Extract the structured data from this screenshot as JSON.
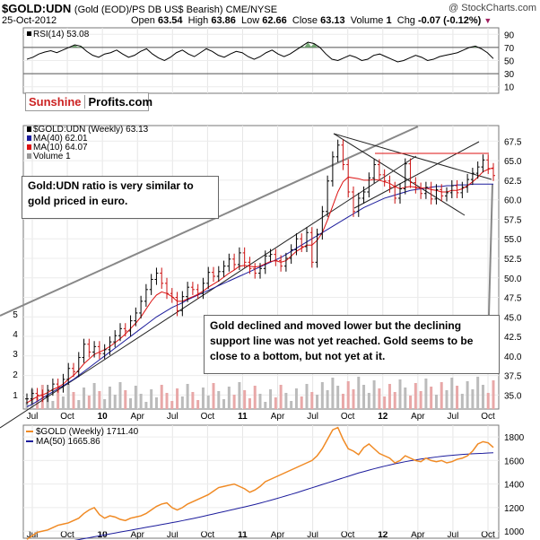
{
  "header": {
    "symbol": "$GOLD:UDN",
    "description": "(Gold (EOD)/PS DB US$ Bearish) CME/NYSE",
    "credit": "@ StockCharts.com",
    "date": "25-Oct-2012",
    "open_label": "Open",
    "open": "63.54",
    "high_label": "High",
    "high": "63.86",
    "low_label": "Low",
    "low": "62.66",
    "close_label": "Close",
    "close": "63.13",
    "volume_label": "Volume",
    "volume": "1",
    "chg_label": "Chg",
    "chg": "-0.07 (-0.12%)"
  },
  "branding": {
    "part1": "Sunshine",
    "part2": "Profits.com"
  },
  "annotations": {
    "note1": "Gold:UDN ratio is very similar to gold priced in euro.",
    "note2": "Gold declined and moved lower but the declining support line was not yet reached. Gold seems to be close to a bottom, but not yet at it."
  },
  "colors": {
    "price": "#000000",
    "ma40": "#1c1c9c",
    "ma10": "#dd1111",
    "volume_up": "#bbbbbb",
    "volume_down": "#e8a8a8",
    "gold": "#f08a24",
    "gold_ma50": "#1c1c9c",
    "rsi_fill_over": "#5f9a5f",
    "trendline": "#888888"
  },
  "chart_data": [
    {
      "type": "line",
      "panel": "rsi",
      "legend": [
        {
          "label": "RSI(14) 53.08",
          "color": "#000000"
        }
      ],
      "yticks": [
        10,
        30,
        50,
        70,
        90
      ],
      "ylim": [
        0,
        100
      ],
      "levels": [
        30,
        70
      ],
      "series": [
        {
          "name": "RSI(14)",
          "values": [
            52,
            55,
            60,
            63,
            65,
            62,
            66,
            70,
            74,
            72,
            64,
            58,
            55,
            60,
            62,
            66,
            60,
            55,
            58,
            64,
            68,
            60,
            54,
            50,
            55,
            62,
            66,
            60,
            56,
            62,
            68,
            64,
            58,
            55,
            60,
            64,
            62,
            56,
            52,
            56,
            62,
            66,
            60,
            56,
            60,
            66,
            72,
            78,
            76,
            70,
            60,
            52,
            50,
            54,
            58,
            55,
            50,
            52,
            58,
            60,
            56,
            52,
            48,
            50,
            54,
            58,
            55,
            50,
            52,
            56,
            58,
            60,
            62,
            66,
            70,
            72,
            68,
            62,
            53
          ]
        }
      ]
    },
    {
      "type": "line",
      "panel": "main",
      "legend": [
        {
          "label": "$GOLD:UDN (Weekly) 63.13",
          "color": "#000000"
        },
        {
          "label": "MA(40) 62.01",
          "color": "#1c1c9c"
        },
        {
          "label": "MA(10) 64.07",
          "color": "#dd1111"
        },
        {
          "label": "Volume 1",
          "color": "#999999"
        }
      ],
      "x_ticks": [
        "Jul",
        "Oct",
        "10",
        "Apr",
        "Jul",
        "Oct",
        "11",
        "Apr",
        "Jul",
        "Oct",
        "12",
        "Apr",
        "Jul",
        "Oct"
      ],
      "y_ticks": [
        35.0,
        37.5,
        40.0,
        42.5,
        45.0,
        47.5,
        50.0,
        52.5,
        55.0,
        57.5,
        60.0,
        62.5,
        65.0,
        67.5
      ],
      "ylim": [
        33.2,
        69.5
      ],
      "volume_ticks": [
        1,
        2,
        3,
        4,
        5
      ],
      "series": [
        {
          "name": "$GOLD:UDN",
          "values": [
            34.5,
            35.2,
            35.0,
            34.8,
            35.6,
            36.4,
            36.0,
            37.0,
            38.4,
            38.0,
            39.8,
            41.5,
            40.5,
            41.2,
            40.3,
            40.8,
            41.8,
            42.6,
            43.5,
            43.2,
            44.5,
            45.5,
            47.0,
            48.5,
            49.8,
            50.6,
            49.3,
            48.0,
            47.5,
            45.8,
            47.6,
            48.8,
            48.5,
            48.0,
            49.3,
            50.7,
            50.2,
            50.8,
            51.5,
            52.4,
            51.7,
            53.2,
            52.0,
            51.2,
            50.6,
            51.2,
            52.8,
            53.0,
            52.2,
            51.5,
            52.5,
            53.6,
            55.0,
            54.0,
            55.8,
            52.0,
            55.6,
            58.5,
            62.4,
            65.5,
            67.0,
            64.5,
            61.0,
            58.5,
            60.2,
            61.0,
            62.8,
            64.5,
            63.2,
            62.4,
            61.6,
            60.2,
            61.4,
            64.6,
            62.2,
            61.5,
            60.8,
            61.6,
            60.1,
            61.3,
            60.5,
            60.9,
            61.8,
            60.9,
            61.6,
            62.6,
            63.4,
            64.2,
            65.1,
            64.0,
            63.1
          ]
        },
        {
          "name": "MA(40)",
          "values": [
            33.5,
            33.8,
            34.2,
            34.6,
            35.0,
            35.4,
            35.8,
            36.2,
            36.6,
            37.0,
            37.5,
            38.0,
            38.5,
            39.0,
            39.5,
            40.0,
            40.5,
            41.0,
            41.5,
            42.0,
            42.5,
            43.0,
            43.5,
            44.0,
            44.5,
            45.0,
            45.4,
            45.8,
            46.2,
            46.5,
            46.8,
            47.2,
            47.5,
            47.8,
            48.1,
            48.4,
            48.7,
            49.0,
            49.3,
            49.6,
            49.9,
            50.2,
            50.5,
            50.8,
            51.1,
            51.4,
            51.7,
            52.0,
            52.3,
            52.6,
            53.0,
            53.4,
            53.8,
            54.2,
            54.6,
            55.0,
            55.4,
            55.8,
            56.2,
            56.6,
            57.0,
            57.4,
            57.8,
            58.2,
            58.6,
            59.0,
            59.3,
            59.6,
            59.9,
            60.2,
            60.4,
            60.6,
            60.8,
            61.0,
            61.2,
            61.3,
            61.4,
            61.5,
            61.6,
            61.7,
            61.7,
            61.8,
            61.8,
            61.9,
            61.9,
            61.9,
            62.0,
            62.0,
            62.0,
            62.0,
            62.0
          ]
        },
        {
          "name": "MA(10)",
          "values": [
            34.0,
            34.4,
            34.8,
            35.0,
            35.3,
            35.7,
            36.0,
            36.4,
            37.0,
            37.5,
            38.2,
            39.0,
            39.6,
            40.2,
            40.5,
            40.8,
            41.2,
            41.7,
            42.2,
            42.8,
            43.5,
            44.2,
            45.0,
            46.0,
            47.0,
            47.8,
            48.2,
            48.0,
            47.6,
            47.0,
            47.0,
            47.3,
            47.6,
            47.9,
            48.3,
            48.8,
            49.2,
            49.6,
            50.1,
            50.6,
            51.0,
            51.5,
            51.6,
            51.5,
            51.4,
            51.5,
            51.8,
            52.1,
            52.2,
            52.0,
            52.2,
            52.8,
            53.4,
            53.8,
            54.2,
            54.2,
            54.8,
            55.8,
            57.4,
            59.2,
            61.0,
            62.3,
            62.9,
            62.8,
            62.7,
            62.5,
            62.5,
            62.6,
            62.5,
            62.3,
            62.1,
            61.7,
            61.4,
            61.6,
            61.7,
            61.6,
            61.5,
            61.5,
            61.3,
            61.2,
            61.0,
            61.0,
            61.2,
            61.2,
            61.4,
            61.8,
            62.3,
            62.9,
            63.6,
            63.9,
            64.1
          ]
        }
      ]
    },
    {
      "type": "line",
      "panel": "gold",
      "legend": [
        {
          "label": "$GOLD (Weekly) 1711.40",
          "color": "#f08a24"
        },
        {
          "label": "MA(50) 1665.86",
          "color": "#1c1c9c"
        }
      ],
      "x_ticks": [
        "Jul",
        "Oct",
        "10",
        "Apr",
        "Jul",
        "Oct",
        "11",
        "Apr",
        "Jul",
        "Oct",
        "12",
        "Apr",
        "Jul",
        "Oct"
      ],
      "yticks": [
        1000,
        1200,
        1400,
        1600,
        1800
      ],
      "ylim": [
        940,
        1900
      ],
      "series": [
        {
          "name": "$GOLD",
          "values": [
            930,
            960,
            990,
            1000,
            1010,
            1030,
            1050,
            1060,
            1070,
            1090,
            1110,
            1150,
            1180,
            1200,
            1140,
            1110,
            1130,
            1120,
            1100,
            1090,
            1110,
            1120,
            1130,
            1150,
            1180,
            1210,
            1230,
            1240,
            1200,
            1180,
            1200,
            1230,
            1250,
            1270,
            1290,
            1310,
            1340,
            1370,
            1380,
            1390,
            1400,
            1380,
            1360,
            1330,
            1350,
            1380,
            1420,
            1440,
            1460,
            1480,
            1500,
            1520,
            1540,
            1560,
            1580,
            1600,
            1640,
            1700,
            1780,
            1860,
            1880,
            1780,
            1700,
            1680,
            1650,
            1710,
            1740,
            1700,
            1660,
            1640,
            1620,
            1580,
            1600,
            1640,
            1620,
            1600,
            1590,
            1620,
            1600,
            1590,
            1600,
            1580,
            1590,
            1610,
            1620,
            1640,
            1680,
            1740,
            1760,
            1750,
            1711
          ]
        },
        {
          "name": "MA(50)",
          "values": [
            860,
            866,
            872,
            878,
            884,
            890,
            897,
            904,
            912,
            920,
            928,
            936,
            944,
            952,
            960,
            968,
            976,
            984,
            992,
            1000,
            1008,
            1016,
            1024,
            1032,
            1040,
            1048,
            1056,
            1064,
            1072,
            1080,
            1089,
            1098,
            1107,
            1116,
            1126,
            1136,
            1146,
            1156,
            1166,
            1176,
            1186,
            1196,
            1206,
            1216,
            1227,
            1238,
            1250,
            1262,
            1274,
            1287,
            1300,
            1313,
            1326,
            1340,
            1354,
            1368,
            1382,
            1396,
            1410,
            1424,
            1438,
            1452,
            1466,
            1480,
            1494,
            1506,
            1518,
            1530,
            1541,
            1552,
            1562,
            1572,
            1581,
            1590,
            1598,
            1605,
            1612,
            1618,
            1624,
            1630,
            1635,
            1640,
            1644,
            1648,
            1651,
            1654,
            1657,
            1659,
            1661,
            1664,
            1666
          ]
        }
      ]
    }
  ]
}
